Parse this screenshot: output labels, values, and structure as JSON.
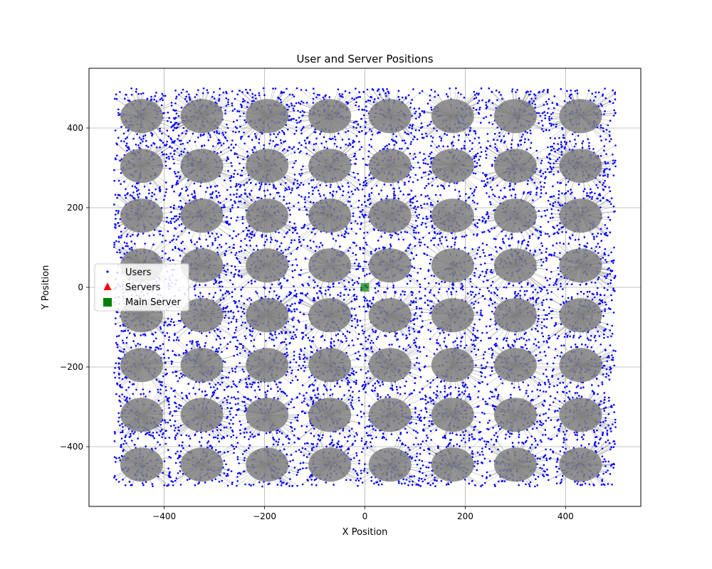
{
  "chart_data": {
    "type": "scatter",
    "title": "User and Server Positions",
    "xlabel": "X Position",
    "ylabel": "Y Position",
    "xlim": [
      -550,
      550
    ],
    "ylim": [
      -550,
      550
    ],
    "xticks": [
      -400,
      -200,
      0,
      200,
      400
    ],
    "yticks": [
      -400,
      -200,
      0,
      200,
      400
    ],
    "xtick_labels": [
      "−400",
      "−200",
      "0",
      "200",
      "400"
    ],
    "ytick_labels": [
      "−400",
      "−200",
      "0",
      "200",
      "400"
    ],
    "grid": true,
    "legend_position": "center-left",
    "legend": [
      {
        "label": "Users",
        "marker": "point",
        "color": "#0000ff"
      },
      {
        "label": "Servers",
        "marker": "triangle",
        "color": "#ff0000"
      },
      {
        "label": "Main Server",
        "marker": "square",
        "color": "#008000"
      }
    ],
    "users": {
      "name": "Users",
      "color": "#0000ff",
      "x_range": [
        -500,
        500
      ],
      "y_range": [
        -500,
        500
      ],
      "distribution": "uniform"
    },
    "server_clusters": {
      "x": [
        -445,
        -325,
        -195,
        -70,
        50,
        175,
        300,
        430
      ],
      "y": [
        430,
        305,
        180,
        55,
        -70,
        -195,
        -320,
        -445
      ],
      "link_color": "#808080"
    },
    "main_server": {
      "name": "Main Server",
      "x": 0,
      "y": 0,
      "color": "#008000"
    }
  }
}
